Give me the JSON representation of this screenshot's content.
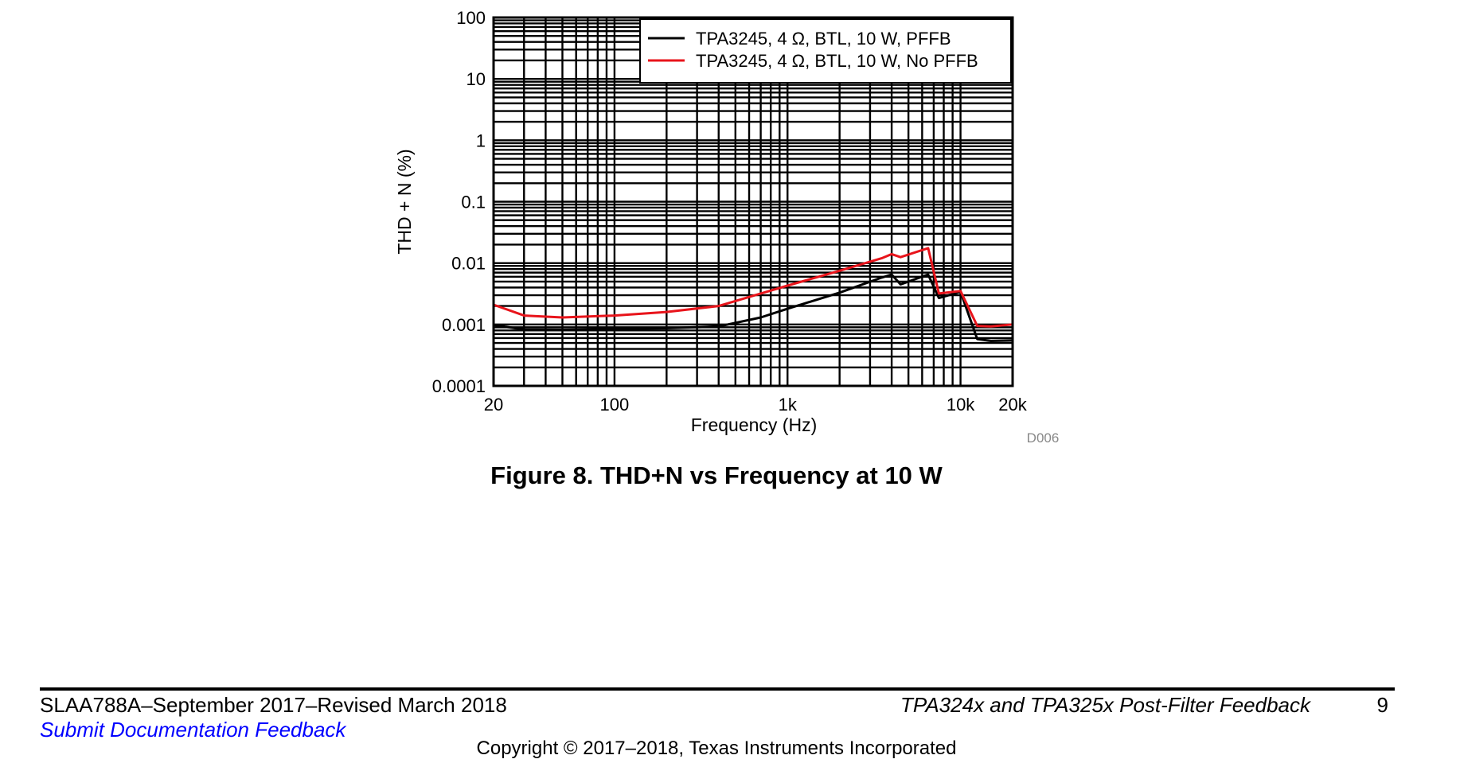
{
  "chart_data": {
    "type": "line",
    "x_scale": "log",
    "y_scale": "log",
    "xlim": [
      20,
      20000
    ],
    "ylim": [
      0.0001,
      100
    ],
    "xlabel": "Frequency (Hz)",
    "ylabel": "THD + N (%)",
    "x_ticks": [
      {
        "value": 20,
        "label": "20"
      },
      {
        "value": 100,
        "label": "100"
      },
      {
        "value": 1000,
        "label": "1k"
      },
      {
        "value": 10000,
        "label": "10k"
      },
      {
        "value": 20000,
        "label": "20k"
      }
    ],
    "y_ticks": [
      {
        "value": 100,
        "label": "100"
      },
      {
        "value": 10,
        "label": "10"
      },
      {
        "value": 1,
        "label": "1"
      },
      {
        "value": 0.1,
        "label": "0.1"
      },
      {
        "value": 0.01,
        "label": "0.01"
      },
      {
        "value": 0.001,
        "label": "0.001"
      },
      {
        "value": 0.0001,
        "label": "0.0001"
      }
    ],
    "grid": true,
    "legend_position": "top-right",
    "figure_id": "D006",
    "series": [
      {
        "name": "TPA3245, 4 Ω, BTL, 10 W, PFFB",
        "color": "#000000",
        "points": [
          [
            20,
            0.00098
          ],
          [
            30,
            0.00083
          ],
          [
            50,
            0.00082
          ],
          [
            100,
            0.00084
          ],
          [
            200,
            0.00087
          ],
          [
            400,
            0.00093
          ],
          [
            700,
            0.0013
          ],
          [
            1000,
            0.0018
          ],
          [
            2000,
            0.0033
          ],
          [
            3500,
            0.0058
          ],
          [
            4000,
            0.0065
          ],
          [
            4500,
            0.0045
          ],
          [
            6500,
            0.0065
          ],
          [
            7500,
            0.0027
          ],
          [
            10000,
            0.0034
          ],
          [
            12500,
            0.00058
          ],
          [
            15000,
            0.00054
          ],
          [
            20000,
            0.00055
          ]
        ]
      },
      {
        "name": "TPA3245, 4 Ω, BTL, 10 W, No PFFB",
        "color": "#e8141b",
        "points": [
          [
            20,
            0.0021
          ],
          [
            30,
            0.0014
          ],
          [
            50,
            0.0013
          ],
          [
            100,
            0.0014
          ],
          [
            200,
            0.0016
          ],
          [
            400,
            0.002
          ],
          [
            700,
            0.0032
          ],
          [
            1000,
            0.0043
          ],
          [
            2000,
            0.0075
          ],
          [
            3500,
            0.012
          ],
          [
            4000,
            0.014
          ],
          [
            4500,
            0.0125
          ],
          [
            6500,
            0.0175
          ],
          [
            7500,
            0.0032
          ],
          [
            10000,
            0.0035
          ],
          [
            12500,
            0.00095
          ],
          [
            15000,
            0.00093
          ],
          [
            20000,
            0.001
          ]
        ]
      }
    ]
  },
  "figure": {
    "caption": "Figure 8. THD+N vs Frequency at 10 W"
  },
  "footer": {
    "doc_info": "SLAA788A–September 2017–Revised March 2018",
    "feedback_link": "Submit Documentation Feedback",
    "doc_title": "TPA324x and TPA325x Post-Filter Feedback",
    "page_number": "9",
    "copyright": "Copyright © 2017–2018, Texas Instruments Incorporated"
  }
}
